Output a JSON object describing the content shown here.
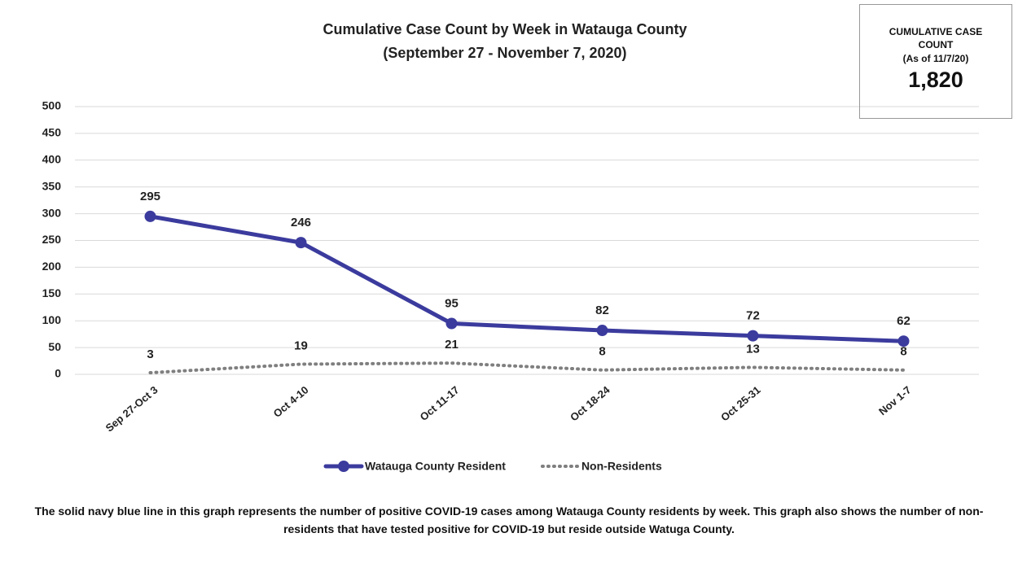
{
  "chart_data": {
    "type": "line",
    "title": "Cumulative Case Count by Week in Watauga County",
    "subtitle": "(September 27 - November 7, 2020)",
    "categories": [
      "Sep 27-Oct 3",
      "Oct 4-10",
      "Oct 11-17",
      "Oct 18-24",
      "Oct 25-31",
      "Nov 1-7"
    ],
    "series": [
      {
        "name": "Watauga County Resident",
        "color": "#3b3b9e",
        "style": "solid",
        "markers": true,
        "values": [
          295,
          246,
          95,
          82,
          72,
          62
        ]
      },
      {
        "name": "Non-Residents",
        "color": "#7f7f7f",
        "style": "dotted",
        "markers": false,
        "values": [
          3,
          19,
          21,
          8,
          13,
          8
        ]
      }
    ],
    "ylim": [
      0,
      500
    ],
    "yticks": [
      0,
      50,
      100,
      150,
      200,
      250,
      300,
      350,
      400,
      450,
      500
    ],
    "grid": true,
    "legend": "bottom",
    "data_labels": true,
    "callout": {
      "title": "CUMULATIVE CASE COUNT",
      "note": "(As of 11/7/20)",
      "value": "1,820"
    },
    "caption": "The solid navy blue line in this graph represents the number of positive COVID-19 cases among Watauga County residents by week. This graph also shows the number of non-residents that have tested positive for COVID-19 but reside outside Watuga County."
  }
}
